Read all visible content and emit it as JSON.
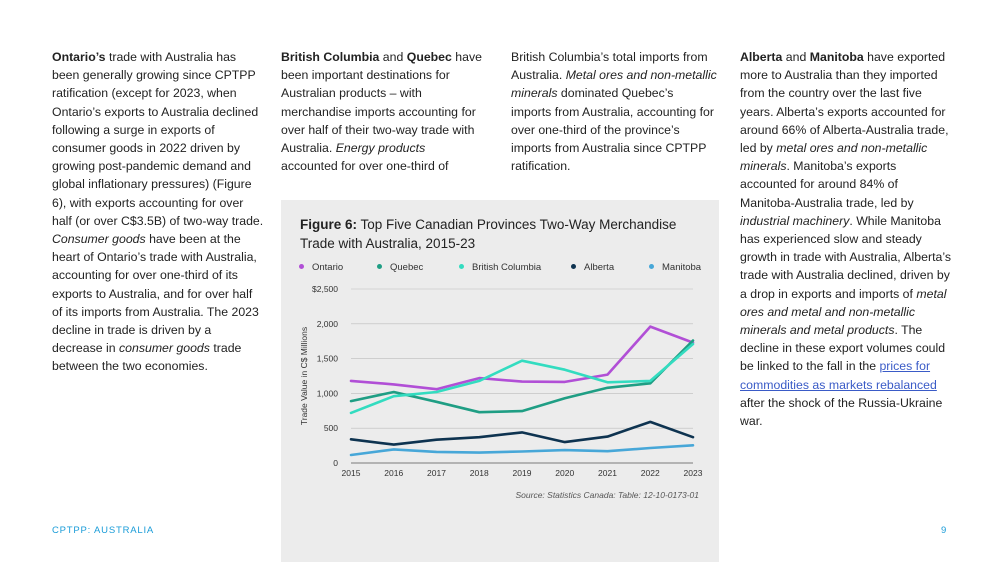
{
  "columns": {
    "col1": [
      {
        "t": "Ontario’s",
        "b": true
      },
      {
        "t": " trade with Australia has been generally growing since CPTPP ratification (except for 2023, when Ontario’s exports to Australia declined following a surge in exports of consumer goods in 2022 driven by growing post-pandemic demand and global inflationary pressures) (Figure 6), with exports accounting for over half (or over C$3.5B) of two-way trade. "
      },
      {
        "t": "Consumer goods",
        "i": true
      },
      {
        "t": " have been at the heart of Ontario’s trade with Australia, accounting for over one-third of its exports to Australia, and for over half of its imports from Australia. The 2023 decline in trade is driven by a decrease in "
      },
      {
        "t": "consumer goods",
        "i": true
      },
      {
        "t": " trade between the two economies."
      }
    ],
    "col2": [
      {
        "t": "British Columbia",
        "b": true
      },
      {
        "t": " and "
      },
      {
        "t": "Quebec",
        "b": true
      },
      {
        "t": " have been important destinations for Australian products – with merchandise imports accounting for over half of their two-way trade with Australia. "
      },
      {
        "t": "Energy products",
        "i": true
      },
      {
        "t": " accounted for over one-third of"
      }
    ],
    "col3": [
      {
        "t": "British Columbia’s total imports from Australia. "
      },
      {
        "t": "Metal ores and non-metallic minerals",
        "i": true
      },
      {
        "t": " dominated Quebec’s imports from Australia, accounting for over one-third of the province’s imports from Australia since CPTPP ratification."
      }
    ],
    "col4": [
      {
        "t": "Alberta",
        "b": true
      },
      {
        "t": " and "
      },
      {
        "t": "Manitoba",
        "b": true
      },
      {
        "t": " have exported more to Australia than they imported from the country over the last five years. Alberta’s exports accounted for around 66% of Alberta-Australia trade, led by "
      },
      {
        "t": "metal ores and non-metallic minerals",
        "i": true
      },
      {
        "t": ". Manitoba’s exports accounted for around 84% of Manitoba-Australia trade, led by "
      },
      {
        "t": "industrial machinery",
        "i": true
      },
      {
        "t": ". While Manitoba has experienced slow and steady growth in trade with Australia, Alberta’s trade with Australia declined, driven by a drop in exports and imports of "
      },
      {
        "t": "metal ores and metal and non-metallic minerals and metal products",
        "i": true
      },
      {
        "t": ". The decline in these export volumes could be linked to the fall in the "
      },
      {
        "t": "prices for commodities as markets rebalanced",
        "a": true
      },
      {
        "t": " after the shock of the Russia-Ukraine war."
      }
    ]
  },
  "figure": {
    "label": "Figure 6:",
    "title": " Top Five Canadian Provinces Two-Way Merchandise Trade with Australia, 2015-23",
    "source": "Source: Statistics Canada: Table: 12-10-0173-01"
  },
  "chart_data": {
    "type": "line",
    "title": "Top Five Canadian Provinces Two-Way Merchandise Trade with Australia, 2015-23",
    "xlabel": "",
    "ylabel": "Trade Value in C$ Millions",
    "x": [
      "2015",
      "2016",
      "2017",
      "2018",
      "2019",
      "2020",
      "2021",
      "2022",
      "2023"
    ],
    "ylim": [
      0,
      2500
    ],
    "yticks": [
      "0",
      "500",
      "1,000",
      "1,500",
      "2,000",
      "$2,500"
    ],
    "grid": "horizontal",
    "legend": "top",
    "series": [
      {
        "name": "Ontario",
        "color": "#b14fd6",
        "values": [
          1180,
          1130,
          1060,
          1220,
          1170,
          1165,
          1270,
          1960,
          1730
        ]
      },
      {
        "name": "Quebec",
        "color": "#1f9e84",
        "values": [
          890,
          1020,
          880,
          730,
          745,
          930,
          1080,
          1145,
          1760
        ]
      },
      {
        "name": "British Columbia",
        "color": "#33dcc0",
        "values": [
          720,
          960,
          1020,
          1180,
          1470,
          1340,
          1160,
          1180,
          1710
        ]
      },
      {
        "name": "Alberta",
        "color": "#0e3350",
        "values": [
          340,
          265,
          335,
          370,
          440,
          300,
          380,
          590,
          370
        ]
      },
      {
        "name": "Manitoba",
        "color": "#47a7d8",
        "values": [
          115,
          195,
          160,
          150,
          165,
          185,
          170,
          215,
          255
        ]
      }
    ]
  },
  "footer": {
    "left": "CPTPP: AUSTRALIA",
    "page": "9"
  }
}
